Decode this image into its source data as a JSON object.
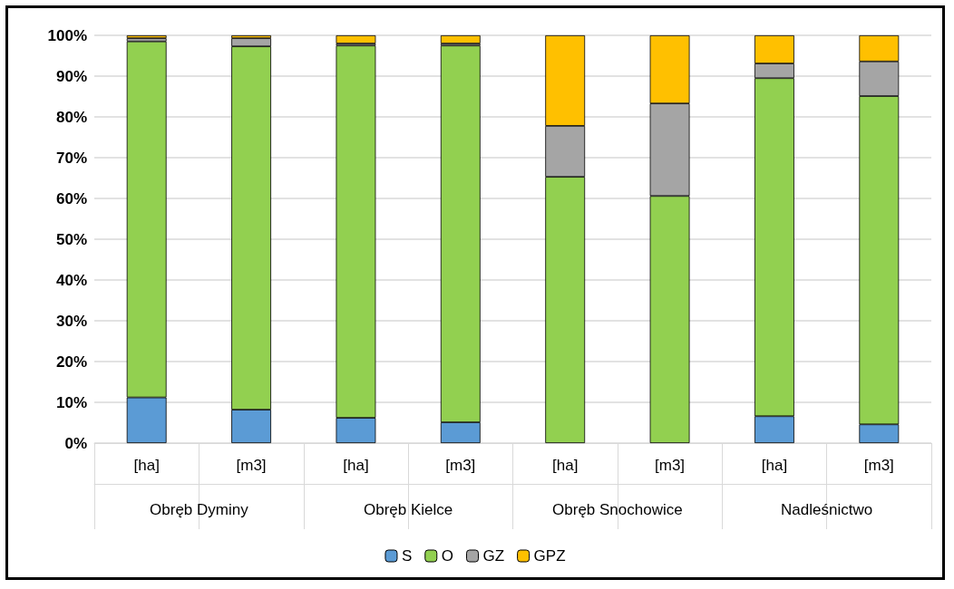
{
  "chart_data": {
    "type": "bar",
    "stacked": true,
    "categories": [
      "[ha]",
      "[m3]",
      "[ha]",
      "[m3]",
      "[ha]",
      "[m3]",
      "[ha]",
      "[m3]"
    ],
    "annotations": [
      "Obręb Dyminy",
      "Obręb Kielce",
      "Obręb Snochowice",
      "Nadleśnictwo"
    ],
    "series": [
      {
        "name": "S",
        "color": "#5b9bd5",
        "values": [
          11.2,
          8.2,
          6.2,
          5.1,
          0,
          0,
          6.6,
          4.6
        ]
      },
      {
        "name": "O",
        "color": "#92d050",
        "values": [
          87.3,
          89.1,
          91.3,
          92.4,
          65.3,
          60.6,
          82.9,
          80.5
        ]
      },
      {
        "name": "GZ",
        "color": "#a5a5a5",
        "values": [
          0.8,
          2.0,
          0.5,
          0.5,
          12.5,
          22.7,
          3.6,
          8.5
        ]
      },
      {
        "name": "GPZ",
        "color": "#ffc000",
        "values": [
          0.7,
          0.7,
          2.0,
          2.0,
          22.2,
          16.7,
          6.9,
          6.4
        ]
      }
    ],
    "ylim": [
      0,
      100
    ],
    "yticks": [
      {
        "value": 0,
        "label": "0%"
      },
      {
        "value": 10,
        "label": "10%"
      },
      {
        "value": 20,
        "label": "20%"
      },
      {
        "value": 30,
        "label": "30%"
      },
      {
        "value": 40,
        "label": "40%"
      },
      {
        "value": 50,
        "label": "50%"
      },
      {
        "value": 60,
        "label": "60%"
      },
      {
        "value": 70,
        "label": "70%"
      },
      {
        "value": 80,
        "label": "80%"
      },
      {
        "value": 90,
        "label": "90%"
      },
      {
        "value": 100,
        "label": "100%"
      }
    ],
    "grid": "y",
    "legend": "bottom"
  }
}
